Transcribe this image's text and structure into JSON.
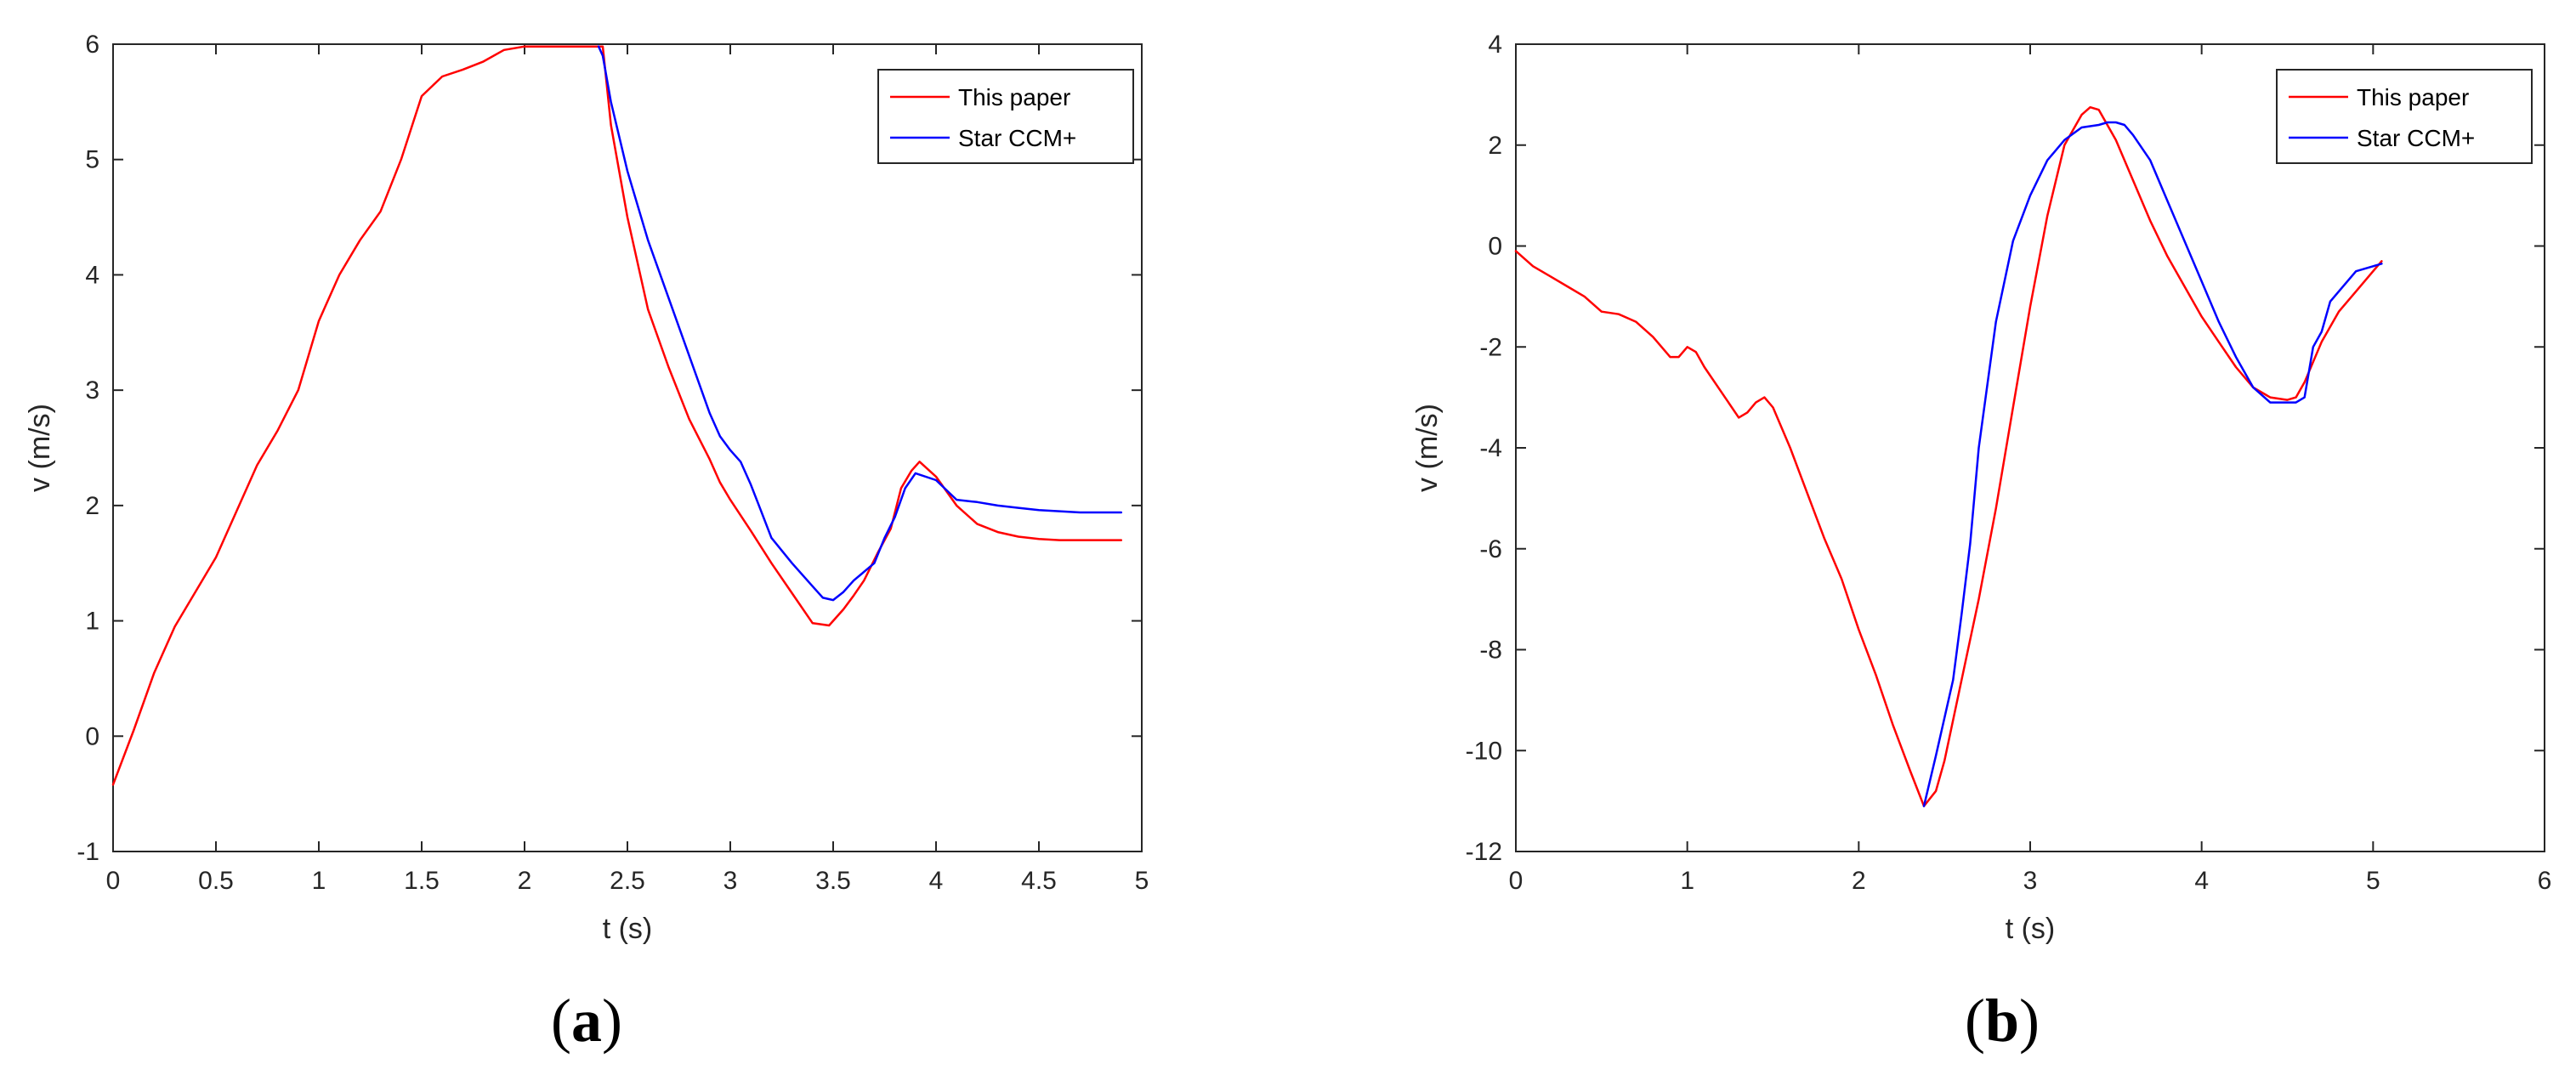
{
  "chart_data": [
    {
      "type": "line",
      "panel_label": "a",
      "xlabel": "t (s)",
      "ylabel": "v (m/s)",
      "xlim": [
        0,
        5
      ],
      "ylim": [
        -1,
        6
      ],
      "xticks": [
        0,
        0.5,
        1,
        1.5,
        2,
        2.5,
        3,
        3.5,
        4,
        4.5,
        5
      ],
      "yticks": [
        -1,
        0,
        1,
        2,
        3,
        4,
        5,
        6
      ],
      "xtick_labels": [
        "0",
        "0.5",
        "1",
        "1.5",
        "2",
        "2.5",
        "3",
        "3.5",
        "4",
        "4.5",
        "5"
      ],
      "ytick_labels": [
        "-1",
        "0",
        "1",
        "2",
        "3",
        "4",
        "5",
        "6"
      ],
      "legend_position": "top-right",
      "series": [
        {
          "name": "This paper",
          "color": "#ff0000",
          "x": [
            0,
            0.1,
            0.2,
            0.3,
            0.4,
            0.5,
            0.6,
            0.7,
            0.8,
            0.9,
            1.0,
            1.1,
            1.2,
            1.3,
            1.4,
            1.5,
            1.6,
            1.7,
            1.8,
            1.9,
            2.0,
            2.1,
            2.2,
            2.3,
            2.38,
            2.42,
            2.5,
            2.6,
            2.7,
            2.8,
            2.9,
            2.95,
            3.0,
            3.1,
            3.2,
            3.3,
            3.4,
            3.48,
            3.55,
            3.6,
            3.65,
            3.72,
            3.78,
            3.83,
            3.88,
            3.92,
            4.0,
            4.1,
            4.2,
            4.3,
            4.4,
            4.5,
            4.6,
            4.7,
            4.8,
            4.9
          ],
          "y": [
            -0.42,
            0.05,
            0.55,
            0.95,
            1.25,
            1.55,
            1.95,
            2.35,
            2.65,
            3.0,
            3.6,
            4.0,
            4.3,
            4.55,
            5.0,
            5.55,
            5.72,
            5.78,
            5.85,
            5.95,
            5.98,
            5.98,
            5.98,
            5.98,
            5.98,
            5.3,
            4.5,
            3.7,
            3.2,
            2.75,
            2.4,
            2.2,
            2.05,
            1.78,
            1.5,
            1.24,
            0.98,
            0.96,
            1.1,
            1.22,
            1.35,
            1.6,
            1.8,
            2.15,
            2.3,
            2.38,
            2.25,
            2.0,
            1.84,
            1.77,
            1.73,
            1.71,
            1.7,
            1.7,
            1.7,
            1.7
          ]
        },
        {
          "name": "Star CCM+",
          "color": "#0000ff",
          "x": [
            2.36,
            2.38,
            2.42,
            2.5,
            2.6,
            2.7,
            2.8,
            2.9,
            2.95,
            3.0,
            3.05,
            3.1,
            3.15,
            3.2,
            3.3,
            3.4,
            3.45,
            3.5,
            3.55,
            3.6,
            3.7,
            3.75,
            3.8,
            3.85,
            3.9,
            4.0,
            4.1,
            4.2,
            4.3,
            4.4,
            4.5,
            4.6,
            4.7,
            4.8,
            4.9
          ],
          "y": [
            5.98,
            5.9,
            5.5,
            4.9,
            4.3,
            3.8,
            3.3,
            2.8,
            2.6,
            2.48,
            2.38,
            2.18,
            1.95,
            1.72,
            1.5,
            1.3,
            1.2,
            1.18,
            1.25,
            1.35,
            1.5,
            1.72,
            1.9,
            2.15,
            2.28,
            2.22,
            2.05,
            2.03,
            2.0,
            1.98,
            1.96,
            1.95,
            1.94,
            1.94,
            1.94
          ]
        }
      ]
    },
    {
      "type": "line",
      "panel_label": "b",
      "xlabel": "t (s)",
      "ylabel": "v (m/s)",
      "xlim": [
        0,
        6
      ],
      "ylim": [
        -12,
        4
      ],
      "xticks": [
        0,
        1,
        2,
        3,
        4,
        5,
        6
      ],
      "yticks": [
        -12,
        -10,
        -8,
        -6,
        -4,
        -2,
        0,
        2,
        4
      ],
      "xtick_labels": [
        "0",
        "1",
        "2",
        "3",
        "4",
        "5",
        "6"
      ],
      "ytick_labels": [
        "-12",
        "-10",
        "-8",
        "-6",
        "-4",
        "-2",
        "0",
        "2",
        "4"
      ],
      "legend_position": "top-right",
      "series": [
        {
          "name": "This paper",
          "color": "#ff0000",
          "x": [
            0,
            0.1,
            0.2,
            0.3,
            0.4,
            0.5,
            0.6,
            0.7,
            0.8,
            0.9,
            0.95,
            1.0,
            1.05,
            1.1,
            1.2,
            1.3,
            1.35,
            1.4,
            1.45,
            1.5,
            1.6,
            1.7,
            1.8,
            1.9,
            2.0,
            2.1,
            2.2,
            2.3,
            2.38,
            2.45,
            2.5,
            2.6,
            2.7,
            2.8,
            2.9,
            3.0,
            3.1,
            3.2,
            3.3,
            3.35,
            3.4,
            3.5,
            3.6,
            3.7,
            3.8,
            3.9,
            4.0,
            4.1,
            4.2,
            4.3,
            4.4,
            4.5,
            4.55,
            4.6,
            4.7,
            4.8,
            4.9,
            5.0,
            5.05
          ],
          "y": [
            -0.1,
            -0.4,
            -0.6,
            -0.8,
            -1.0,
            -1.3,
            -1.35,
            -1.5,
            -1.8,
            -2.2,
            -2.2,
            -2.0,
            -2.1,
            -2.4,
            -2.9,
            -3.4,
            -3.3,
            -3.1,
            -3.0,
            -3.2,
            -4.0,
            -4.9,
            -5.8,
            -6.6,
            -7.6,
            -8.5,
            -9.5,
            -10.4,
            -11.1,
            -10.8,
            -10.2,
            -8.6,
            -7.0,
            -5.2,
            -3.2,
            -1.2,
            0.6,
            2.0,
            2.6,
            2.75,
            2.7,
            2.1,
            1.3,
            0.5,
            -0.2,
            -0.8,
            -1.4,
            -1.9,
            -2.4,
            -2.8,
            -3.0,
            -3.05,
            -3.0,
            -2.7,
            -1.9,
            -1.3,
            -0.9,
            -0.5,
            -0.3
          ]
        },
        {
          "name": "Star CCM+",
          "color": "#0000ff",
          "x": [
            2.38,
            2.45,
            2.55,
            2.6,
            2.65,
            2.7,
            2.8,
            2.9,
            3.0,
            3.1,
            3.2,
            3.3,
            3.4,
            3.45,
            3.5,
            3.55,
            3.6,
            3.7,
            3.8,
            3.9,
            4.0,
            4.1,
            4.2,
            4.3,
            4.4,
            4.45,
            4.5,
            4.55,
            4.6,
            4.65,
            4.7,
            4.75,
            4.8,
            4.9,
            5.0,
            5.05
          ],
          "y": [
            -11.1,
            -10.1,
            -8.6,
            -7.3,
            -5.9,
            -4.0,
            -1.5,
            0.1,
            1.0,
            1.7,
            2.1,
            2.35,
            2.4,
            2.45,
            2.45,
            2.4,
            2.2,
            1.7,
            0.9,
            0.1,
            -0.7,
            -1.5,
            -2.2,
            -2.8,
            -3.1,
            -3.1,
            -3.1,
            -3.1,
            -3.0,
            -2.0,
            -1.7,
            -1.1,
            -0.9,
            -0.5,
            -0.4,
            -0.35
          ]
        }
      ]
    }
  ]
}
